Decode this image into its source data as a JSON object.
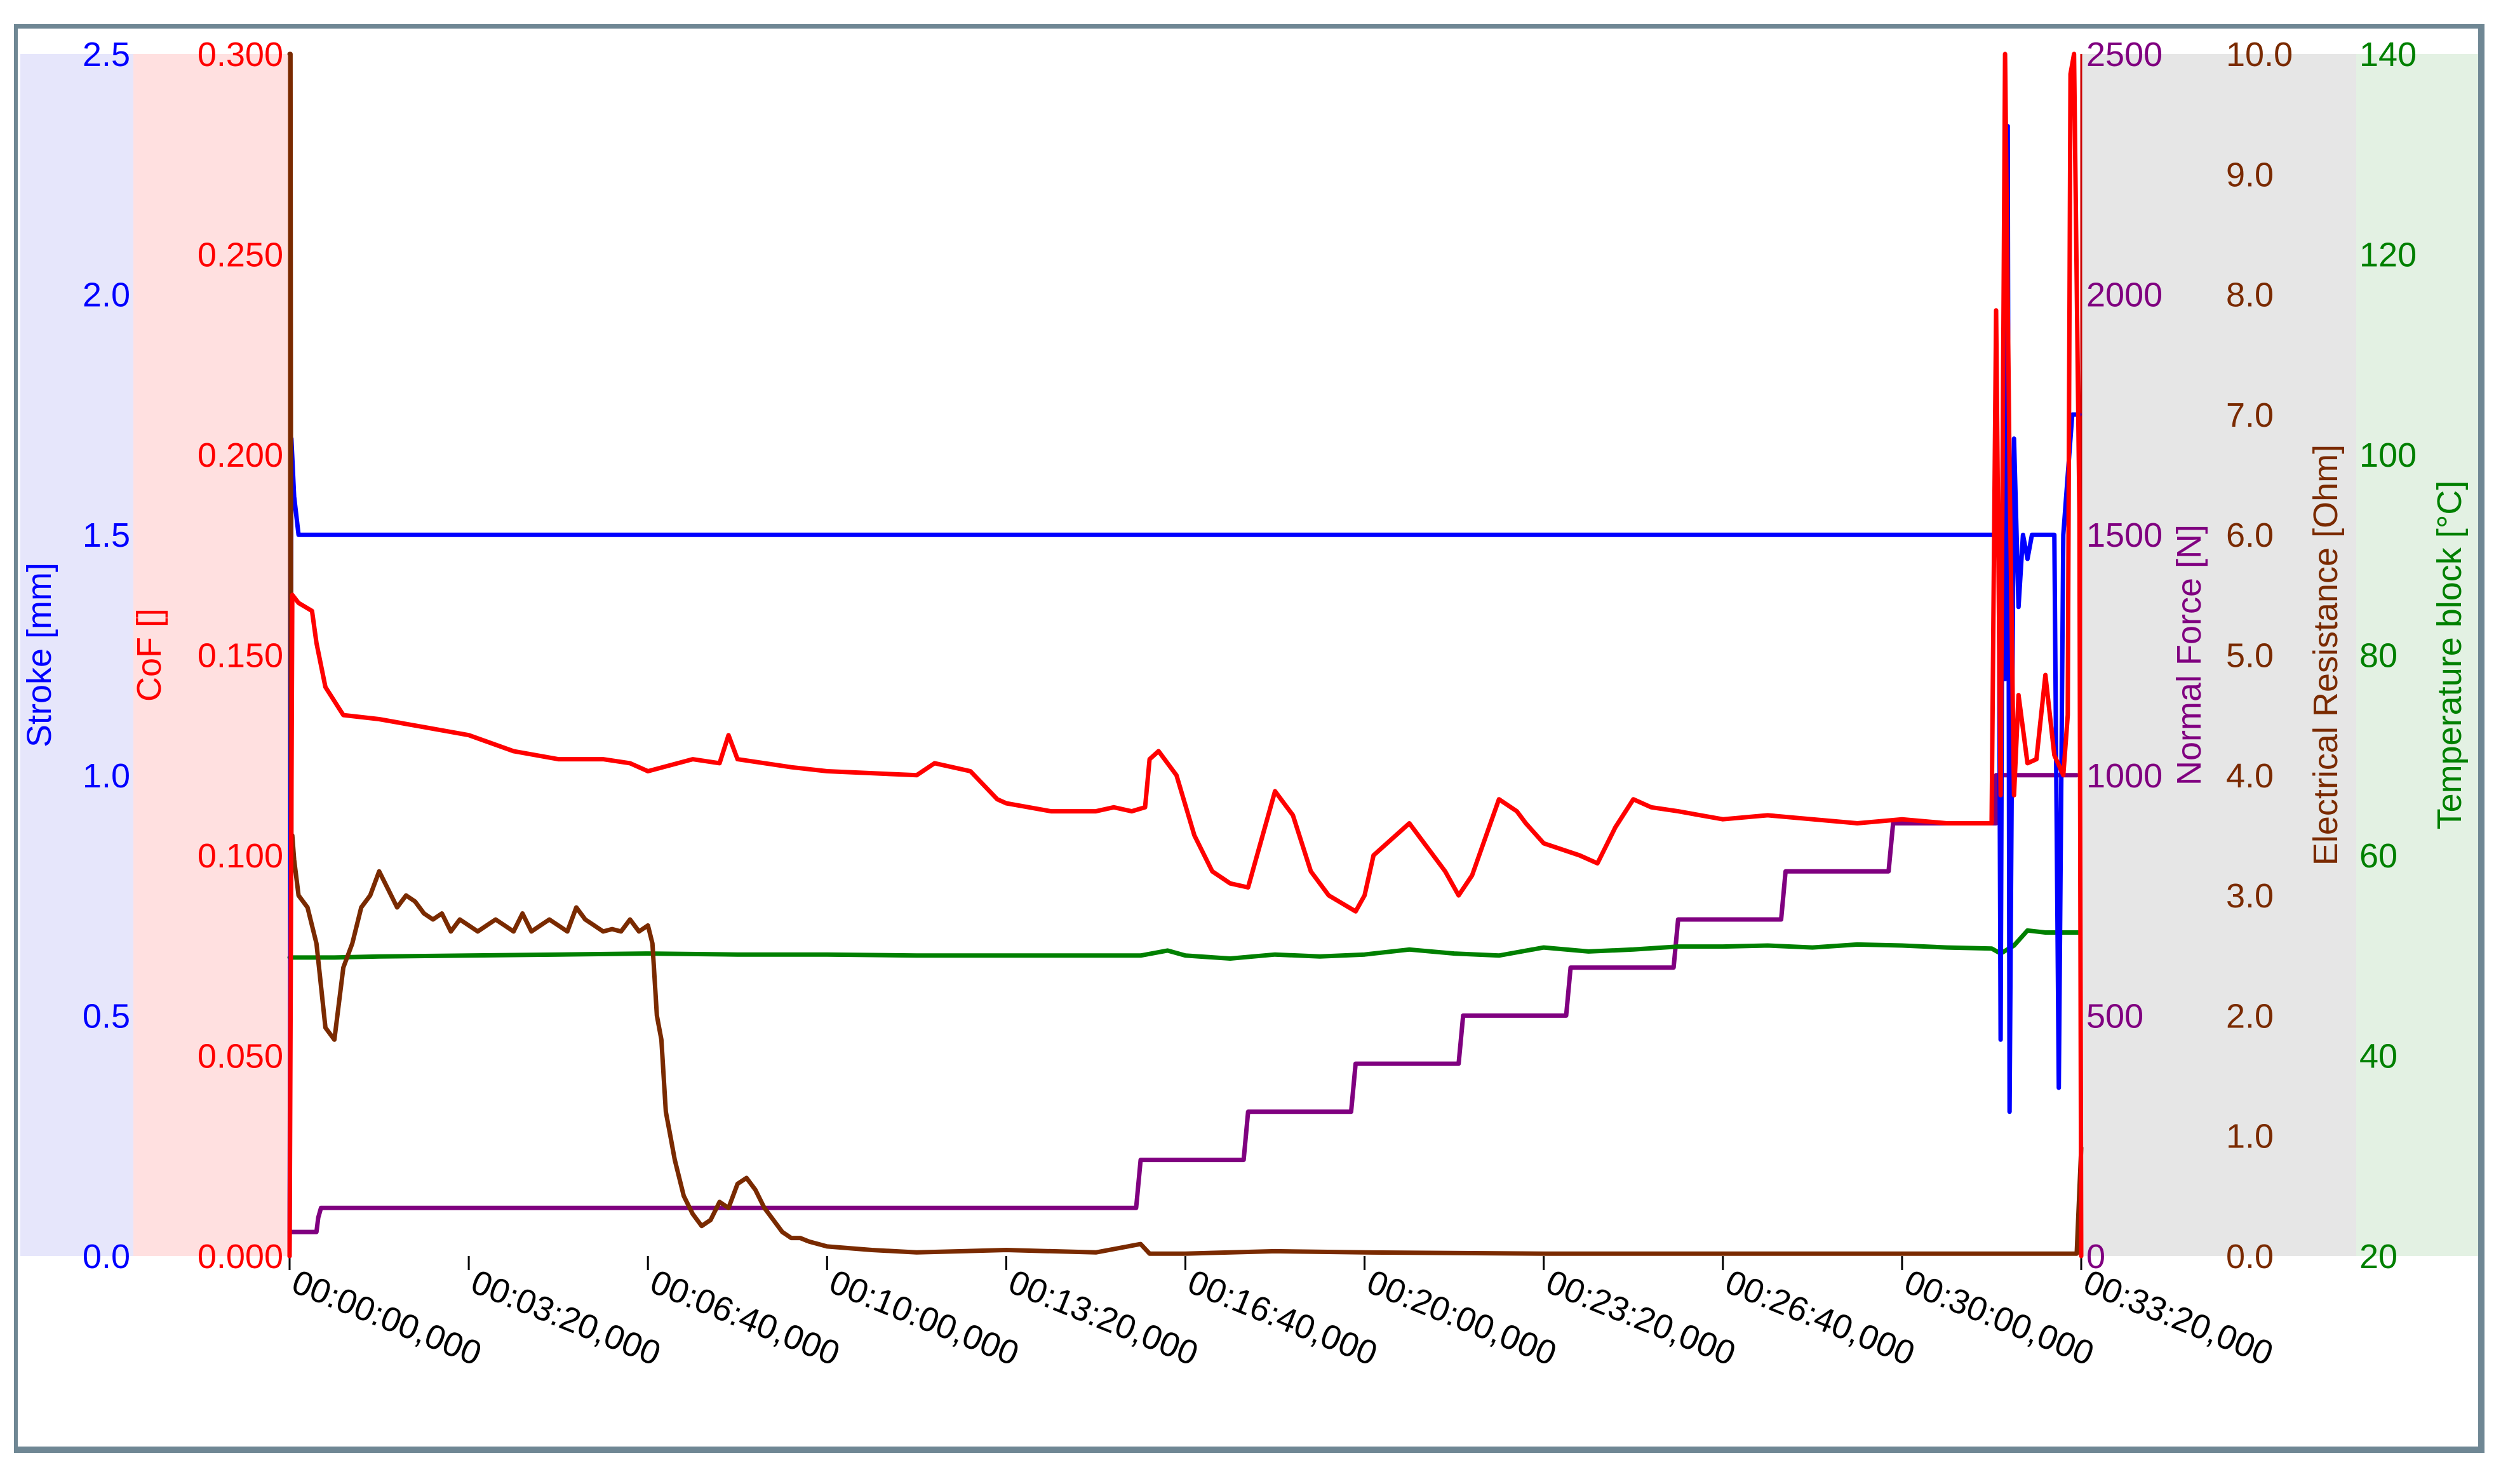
{
  "chart_data": {
    "type": "line",
    "x": {
      "unit": "time hh:mm:ss,ms",
      "range_seconds": [
        0,
        2000
      ],
      "tick_labels": [
        "00:00:00,000",
        "00:03:20,000",
        "00:06:40,000",
        "00:10:00,000",
        "00:13:20,000",
        "00:16:40,000",
        "00:20:00,000",
        "00:23:20,000",
        "00:26:40,000",
        "00:30:00,000",
        "00:33:20,000"
      ],
      "tick_seconds": [
        0,
        200,
        400,
        600,
        800,
        1000,
        1200,
        1400,
        1600,
        1800,
        2000
      ]
    },
    "axes": [
      {
        "id": "stroke",
        "label": "Stroke [mm]",
        "color": "#0000ff",
        "band": "#e6e6fb",
        "ylim": [
          0,
          2.5
        ],
        "ticks": [
          "0.0",
          "0.5",
          "1.0",
          "1.5",
          "2.0",
          "2.5"
        ]
      },
      {
        "id": "cof",
        "label": "CoF []",
        "color": "#ff0000",
        "band": "#ffe0e0",
        "ylim": [
          0,
          0.3
        ],
        "ticks": [
          "0.000",
          "0.050",
          "0.100",
          "0.150",
          "0.200",
          "0.250",
          "0.300"
        ]
      },
      {
        "id": "force",
        "label": "Normal Force [N]",
        "color": "#800080",
        "band": "#e6e6e6",
        "ylim": [
          0,
          2500
        ],
        "ticks": [
          "0",
          "500",
          "1000",
          "1500",
          "2000",
          "2500"
        ]
      },
      {
        "id": "resistance",
        "label": "Electrical Resistance [Ohm]",
        "color": "#7a2a00",
        "band": "#e6e6e6",
        "ylim": [
          0,
          10
        ],
        "ticks": [
          "0.0",
          "1.0",
          "2.0",
          "3.0",
          "4.0",
          "5.0",
          "6.0",
          "7.0",
          "8.0",
          "9.0",
          "10.0"
        ]
      },
      {
        "id": "temperature",
        "label": "Temperature block [°C]",
        "color": "#008000",
        "band": "#e3f1e3",
        "ylim": [
          20,
          140
        ],
        "ticks": [
          "20",
          "40",
          "60",
          "80",
          "100",
          "120",
          "140"
        ]
      }
    ],
    "series": [
      {
        "axis": "stroke",
        "color": "#0000ff",
        "x": [
          0,
          2,
          5,
          10,
          100,
          400,
          800,
          1200,
          1600,
          1900,
          1908,
          1910,
          1912,
          1915,
          1918,
          1920,
          1925,
          1930,
          1935,
          1940,
          1945,
          1950,
          1960,
          1970,
          1975,
          1980,
          1990,
          1998
        ],
        "y": [
          0,
          1.7,
          1.58,
          1.5,
          1.5,
          1.5,
          1.5,
          1.5,
          1.5,
          1.5,
          1.5,
          0.45,
          1.5,
          1.2,
          2.35,
          0.3,
          1.7,
          1.35,
          1.5,
          1.45,
          1.5,
          1.5,
          1.5,
          1.5,
          0.35,
          1.5,
          1.75,
          1.75
        ]
      },
      {
        "axis": "cof",
        "color": "#ff0000",
        "x": [
          0,
          3,
          10,
          25,
          30,
          40,
          60,
          100,
          150,
          200,
          250,
          300,
          350,
          380,
          400,
          450,
          480,
          490,
          500,
          560,
          600,
          700,
          720,
          760,
          790,
          800,
          850,
          900,
          920,
          940,
          955,
          960,
          970,
          990,
          1010,
          1030,
          1050,
          1070,
          1080,
          1100,
          1120,
          1140,
          1160,
          1190,
          1200,
          1210,
          1250,
          1290,
          1305,
          1320,
          1350,
          1370,
          1380,
          1400,
          1440,
          1460,
          1480,
          1500,
          1520,
          1550,
          1600,
          1650,
          1700,
          1750,
          1800,
          1850,
          1900,
          1905,
          1910,
          1915,
          1920,
          1925,
          1930,
          1940,
          1950,
          1960,
          1970,
          1980,
          1985,
          1988,
          1992,
          1998,
          2000
        ],
        "y": [
          0,
          0.165,
          0.163,
          0.161,
          0.153,
          0.142,
          0.135,
          0.134,
          0.132,
          0.13,
          0.126,
          0.124,
          0.124,
          0.123,
          0.121,
          0.124,
          0.123,
          0.13,
          0.124,
          0.122,
          0.121,
          0.12,
          0.123,
          0.121,
          0.114,
          0.113,
          0.111,
          0.111,
          0.112,
          0.111,
          0.112,
          0.124,
          0.126,
          0.12,
          0.105,
          0.096,
          0.093,
          0.092,
          0.1,
          0.116,
          0.11,
          0.096,
          0.09,
          0.086,
          0.09,
          0.1,
          0.108,
          0.096,
          0.09,
          0.095,
          0.114,
          0.111,
          0.108,
          0.103,
          0.1,
          0.098,
          0.107,
          0.114,
          0.112,
          0.111,
          0.109,
          0.11,
          0.109,
          0.108,
          0.109,
          0.108,
          0.108,
          0.236,
          0.115,
          0.3,
          0.196,
          0.115,
          0.14,
          0.123,
          0.124,
          0.145,
          0.125,
          0.12,
          0.135,
          0.295,
          0.3,
          0.185,
          0
        ]
      },
      {
        "axis": "force",
        "color": "#800080",
        "x": [
          0,
          30,
          32,
          35,
          945,
          950,
          1065,
          1070,
          1185,
          1190,
          1305,
          1310,
          1425,
          1430,
          1545,
          1550,
          1665,
          1670,
          1785,
          1790,
          1900,
          1905,
          1905,
          1910,
          1990,
          1995
        ],
        "y": [
          50,
          50,
          80,
          100,
          100,
          200,
          200,
          300,
          300,
          400,
          400,
          500,
          500,
          600,
          600,
          700,
          700,
          800,
          800,
          900,
          900,
          900,
          1000,
          1000,
          1000,
          1000
        ]
      },
      {
        "axis": "resistance",
        "color": "#7a2a00",
        "x": [
          0,
          1,
          2,
          3,
          5,
          10,
          20,
          30,
          40,
          50,
          60,
          70,
          80,
          90,
          100,
          110,
          120,
          130,
          140,
          150,
          160,
          170,
          180,
          190,
          200,
          210,
          220,
          230,
          240,
          250,
          260,
          270,
          280,
          290,
          300,
          310,
          320,
          330,
          340,
          350,
          360,
          370,
          380,
          390,
          400,
          405,
          410,
          415,
          420,
          425,
          430,
          440,
          450,
          460,
          470,
          480,
          490,
          500,
          510,
          520,
          530,
          540,
          550,
          560,
          570,
          580,
          600,
          650,
          700,
          800,
          900,
          950,
          960,
          1000,
          1100,
          1200,
          1400,
          1600,
          1800,
          1900,
          1990,
          1995,
          2000
        ],
        "y": [
          10,
          10,
          3.2,
          3.5,
          3.3,
          3.0,
          2.9,
          2.6,
          1.9,
          1.8,
          2.4,
          2.6,
          2.9,
          3.0,
          3.2,
          3.05,
          2.9,
          3.0,
          2.95,
          2.85,
          2.8,
          2.85,
          2.7,
          2.8,
          2.75,
          2.7,
          2.75,
          2.8,
          2.75,
          2.7,
          2.85,
          2.7,
          2.75,
          2.8,
          2.75,
          2.7,
          2.9,
          2.8,
          2.75,
          2.7,
          2.72,
          2.7,
          2.8,
          2.7,
          2.75,
          2.6,
          2.0,
          1.8,
          1.2,
          1.0,
          0.8,
          0.5,
          0.35,
          0.25,
          0.3,
          0.45,
          0.4,
          0.6,
          0.65,
          0.55,
          0.4,
          0.3,
          0.2,
          0.15,
          0.15,
          0.12,
          0.08,
          0.05,
          0.03,
          0.05,
          0.03,
          0.1,
          0.02,
          0.02,
          0.04,
          0.03,
          0.02,
          0.02,
          0.02,
          0.02,
          0.02,
          0.02,
          0.9
        ]
      },
      {
        "axis": "temperature",
        "color": "#008000",
        "x": [
          0,
          50,
          100,
          200,
          300,
          400,
          500,
          600,
          700,
          800,
          900,
          950,
          980,
          1000,
          1050,
          1100,
          1150,
          1200,
          1250,
          1300,
          1350,
          1400,
          1450,
          1500,
          1550,
          1600,
          1650,
          1700,
          1750,
          1800,
          1850,
          1900,
          1910,
          1925,
          1940,
          1960,
          1998
        ],
        "y": [
          49.8,
          49.8,
          49.9,
          50.0,
          50.1,
          50.2,
          50.1,
          50.1,
          50.0,
          50.0,
          50.0,
          50.0,
          50.5,
          50.0,
          49.7,
          50.1,
          49.9,
          50.1,
          50.6,
          50.2,
          50.0,
          50.8,
          50.4,
          50.6,
          50.9,
          50.9,
          51.0,
          50.8,
          51.1,
          51.0,
          50.8,
          50.7,
          50.2,
          51.0,
          52.5,
          52.3,
          52.3
        ]
      }
    ]
  }
}
